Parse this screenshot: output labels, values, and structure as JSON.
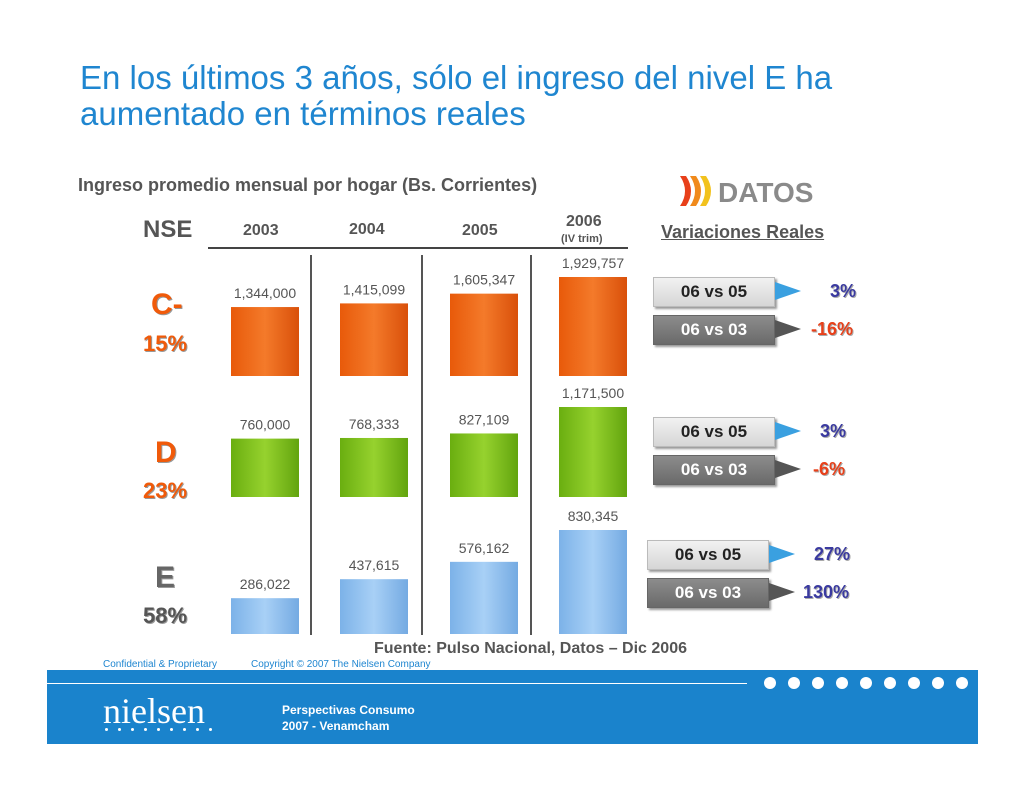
{
  "title": "En los últimos 3 años, sólo el ingreso del nivel E ha aumentado en términos reales",
  "subtitle": "Ingreso promedio mensual por hogar (Bs. Corrientes)",
  "logo_text": "DATOS",
  "nse_label": "NSE",
  "variations_label": "Variaciones Reales",
  "years": [
    "2003",
    "2004",
    "2005",
    "2006"
  ],
  "year_note": "(IV trim)",
  "levels": [
    {
      "name": "C-",
      "share": "15%",
      "color": "#f05a0a"
    },
    {
      "name": "D",
      "share": "23%",
      "color": "#f05a0a"
    },
    {
      "name": "E",
      "share": "58%",
      "color": "#666666"
    }
  ],
  "chart_data": {
    "type": "bar",
    "title": "Ingreso promedio mensual por hogar (Bs. Corrientes)",
    "categories": [
      "2003",
      "2004",
      "2005",
      "2006"
    ],
    "series": [
      {
        "name": "C-",
        "values": [
          1344000,
          1415099,
          1605347,
          1929757
        ],
        "labels": [
          "1,344,000",
          "1,415,099",
          "1,605,347",
          "1,929,757"
        ],
        "color": "#f0640f"
      },
      {
        "name": "D",
        "values": [
          760000,
          768333,
          827109,
          1171500
        ],
        "labels": [
          "760,000",
          "768,333",
          "827,109",
          "1,171,500"
        ],
        "color": "#7fc31c"
      },
      {
        "name": "E",
        "values": [
          286022,
          437615,
          576162,
          830345
        ],
        "labels": [
          "286,022",
          "437,615",
          "576,162",
          "830,345"
        ],
        "color": "#8fc0ee"
      }
    ]
  },
  "variations": [
    {
      "rows": [
        {
          "label": "06 vs 05",
          "value": "3%",
          "color": "#3a3aa0"
        },
        {
          "label": "06 vs 03",
          "value": "-16%",
          "color": "#e8401a"
        }
      ]
    },
    {
      "rows": [
        {
          "label": "06 vs 05",
          "value": "3%",
          "color": "#3a3aa0"
        },
        {
          "label": "06 vs 03",
          "value": "-6%",
          "color": "#e8401a"
        }
      ]
    },
    {
      "rows": [
        {
          "label": "06 vs 05",
          "value": "27%",
          "color": "#3a3aa0"
        },
        {
          "label": "06 vs 03",
          "value": "130%",
          "color": "#3a3aa0"
        }
      ]
    }
  ],
  "source": "Fuente: Pulso Nacional, Datos – Dic 2006",
  "footer": {
    "confidential": "Confidential & Proprietary",
    "copyright": "Copyright © 2007 The Nielsen Company",
    "brand": "nielsen",
    "line1": "Perspectivas Consumo",
    "line2": "2007 - Venamcham"
  }
}
